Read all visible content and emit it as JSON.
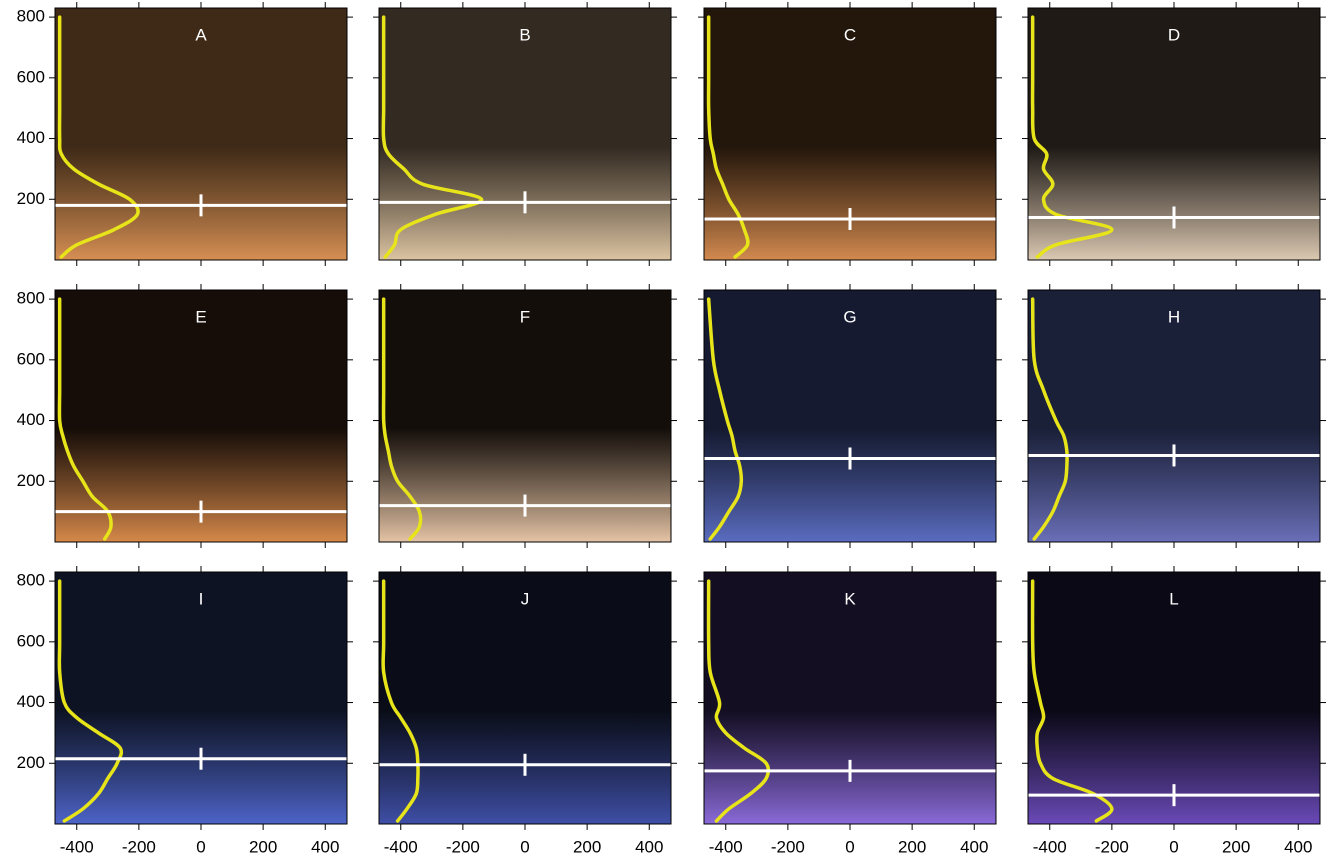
{
  "chart_data": [
    {
      "type": "line",
      "title": "A",
      "background": [
        "#3e2a17",
        "#d68f53"
      ],
      "level": 180,
      "level_color": "#ffffff",
      "xlim": [
        -470,
        470
      ],
      "ylim": [
        0,
        830
      ],
      "xticks": [
        -400,
        -200,
        0,
        200,
        400
      ],
      "yticks": [
        200,
        400,
        600,
        800
      ],
      "series": [
        {
          "color": "#e8e41a",
          "y": [
            10,
            50,
            100,
            150,
            200,
            250,
            300,
            350,
            400,
            500,
            600,
            800
          ],
          "values": [
            -450,
            -400,
            -280,
            -205,
            -230,
            -330,
            -410,
            -450,
            -455,
            -455,
            -455,
            -455
          ]
        }
      ]
    },
    {
      "type": "line",
      "title": "B",
      "background": [
        "#332a22",
        "#dcc4a2"
      ],
      "level": 190,
      "level_color": "#ffffff",
      "xlim": [
        -470,
        470
      ],
      "ylim": [
        0,
        830
      ],
      "xticks": [
        -400,
        -200,
        0,
        200,
        400
      ],
      "yticks": [
        200,
        400,
        600,
        800
      ],
      "series": [
        {
          "color": "#e8e41a",
          "y": [
            10,
            50,
            100,
            150,
            200,
            250,
            300,
            350,
            400,
            500,
            600,
            800
          ],
          "values": [
            -450,
            -420,
            -400,
            -290,
            -140,
            -330,
            -390,
            -440,
            -455,
            -455,
            -455,
            -455
          ]
        }
      ]
    },
    {
      "type": "line",
      "title": "C",
      "background": [
        "#23160b",
        "#d38a4f"
      ],
      "level": 135,
      "level_color": "#ffffff",
      "xlim": [
        -470,
        470
      ],
      "ylim": [
        0,
        830
      ],
      "xticks": [
        -400,
        -200,
        0,
        200,
        400
      ],
      "yticks": [
        200,
        400,
        600,
        800
      ],
      "series": [
        {
          "color": "#e8e41a",
          "y": [
            10,
            50,
            100,
            150,
            200,
            250,
            300,
            350,
            400,
            500,
            600,
            800
          ],
          "values": [
            -370,
            -330,
            -340,
            -360,
            -390,
            -410,
            -430,
            -440,
            -450,
            -455,
            -455,
            -455
          ]
        }
      ]
    },
    {
      "type": "line",
      "title": "D",
      "background": [
        "#1f1a16",
        "#dcc9b2"
      ],
      "level": 140,
      "level_color": "#ffffff",
      "xlim": [
        -470,
        470
      ],
      "ylim": [
        0,
        830
      ],
      "xticks": [
        -400,
        -200,
        0,
        200,
        400
      ],
      "yticks": [
        200,
        400,
        600,
        800
      ],
      "series": [
        {
          "color": "#e8e41a",
          "y": [
            10,
            50,
            100,
            150,
            200,
            250,
            300,
            350,
            400,
            500,
            600,
            800
          ],
          "values": [
            -440,
            -380,
            -200,
            -380,
            -420,
            -390,
            -420,
            -410,
            -450,
            -455,
            -455,
            -455
          ]
        }
      ]
    },
    {
      "type": "line",
      "title": "E",
      "background": [
        "#160d08",
        "#d6894a"
      ],
      "level": 100,
      "level_color": "#ffffff",
      "xlim": [
        -470,
        470
      ],
      "ylim": [
        0,
        830
      ],
      "xticks": [
        -400,
        -200,
        0,
        200,
        400
      ],
      "yticks": [
        200,
        400,
        600,
        800
      ],
      "series": [
        {
          "color": "#e8e41a",
          "y": [
            10,
            50,
            100,
            150,
            200,
            250,
            300,
            350,
            400,
            500,
            600,
            800
          ],
          "values": [
            -310,
            -290,
            -300,
            -350,
            -380,
            -410,
            -430,
            -445,
            -455,
            -455,
            -455,
            -455
          ]
        }
      ]
    },
    {
      "type": "line",
      "title": "F",
      "background": [
        "#140e0a",
        "#e5c4a5"
      ],
      "level": 120,
      "level_color": "#ffffff",
      "xlim": [
        -470,
        470
      ],
      "ylim": [
        0,
        830
      ],
      "xticks": [
        -400,
        -200,
        0,
        200,
        400
      ],
      "yticks": [
        200,
        400,
        600,
        800
      ],
      "series": [
        {
          "color": "#e8e41a",
          "y": [
            10,
            50,
            100,
            150,
            200,
            250,
            300,
            350,
            400,
            500,
            600,
            800
          ],
          "values": [
            -370,
            -340,
            -340,
            -370,
            -410,
            -430,
            -440,
            -450,
            -455,
            -455,
            -455,
            -455
          ]
        }
      ]
    },
    {
      "type": "line",
      "title": "G",
      "background": [
        "#151a30",
        "#5a6cc0"
      ],
      "level": 275,
      "level_color": "#ffffff",
      "xlim": [
        -470,
        470
      ],
      "ylim": [
        0,
        830
      ],
      "xticks": [
        -400,
        -200,
        0,
        200,
        400
      ],
      "yticks": [
        200,
        400,
        600,
        800
      ],
      "series": [
        {
          "color": "#e8e41a",
          "y": [
            10,
            50,
            100,
            150,
            200,
            250,
            300,
            350,
            400,
            500,
            600,
            800
          ],
          "values": [
            -450,
            -420,
            -390,
            -360,
            -350,
            -355,
            -370,
            -380,
            -395,
            -420,
            -440,
            -455
          ]
        }
      ]
    },
    {
      "type": "line",
      "title": "H",
      "background": [
        "#1a2038",
        "#6a6fb8"
      ],
      "level": 285,
      "level_color": "#ffffff",
      "xlim": [
        -470,
        470
      ],
      "ylim": [
        0,
        830
      ],
      "xticks": [
        -400,
        -200,
        0,
        200,
        400
      ],
      "yticks": [
        200,
        400,
        600,
        800
      ],
      "series": [
        {
          "color": "#e8e41a",
          "y": [
            10,
            50,
            100,
            150,
            200,
            250,
            300,
            350,
            400,
            500,
            600,
            800
          ],
          "values": [
            -450,
            -420,
            -390,
            -370,
            -350,
            -345,
            -345,
            -355,
            -380,
            -420,
            -450,
            -455
          ]
        }
      ]
    },
    {
      "type": "line",
      "title": "I",
      "background": [
        "#0e1324",
        "#4d64c8"
      ],
      "level": 215,
      "level_color": "#ffffff",
      "xlim": [
        -470,
        470
      ],
      "ylim": [
        0,
        830
      ],
      "xticks": [
        -400,
        -200,
        0,
        200,
        400
      ],
      "yticks": [
        200,
        400,
        600,
        800
      ],
      "series": [
        {
          "color": "#e8e41a",
          "y": [
            10,
            50,
            100,
            150,
            200,
            250,
            300,
            350,
            400,
            500,
            600,
            800
          ],
          "values": [
            -440,
            -380,
            -330,
            -300,
            -270,
            -260,
            -330,
            -400,
            -440,
            -455,
            -455,
            -455
          ]
        }
      ]
    },
    {
      "type": "line",
      "title": "J",
      "background": [
        "#0a0d18",
        "#3f4fa6"
      ],
      "level": 195,
      "level_color": "#ffffff",
      "xlim": [
        -470,
        470
      ],
      "ylim": [
        0,
        830
      ],
      "xticks": [
        -400,
        -200,
        0,
        200,
        400
      ],
      "yticks": [
        200,
        400,
        600,
        800
      ],
      "series": [
        {
          "color": "#e8e41a",
          "y": [
            10,
            50,
            100,
            150,
            200,
            250,
            300,
            350,
            400,
            500,
            600,
            800
          ],
          "values": [
            -410,
            -380,
            -350,
            -345,
            -345,
            -350,
            -370,
            -400,
            -430,
            -455,
            -455,
            -455
          ]
        }
      ]
    },
    {
      "type": "line",
      "title": "K",
      "background": [
        "#130e22",
        "#8a6ad8"
      ],
      "level": 175,
      "level_color": "#ffffff",
      "xlim": [
        -470,
        470
      ],
      "ylim": [
        0,
        830
      ],
      "xticks": [
        -400,
        -200,
        0,
        200,
        400
      ],
      "yticks": [
        200,
        400,
        600,
        800
      ],
      "series": [
        {
          "color": "#e8e41a",
          "y": [
            10,
            50,
            100,
            150,
            200,
            250,
            300,
            350,
            400,
            500,
            600,
            800
          ],
          "values": [
            -430,
            -390,
            -320,
            -270,
            -270,
            -340,
            -400,
            -430,
            -420,
            -450,
            -455,
            -455
          ]
        }
      ]
    },
    {
      "type": "line",
      "title": "L",
      "background": [
        "#0b0916",
        "#6a4ab8"
      ],
      "level": 95,
      "level_color": "#ffffff",
      "xlim": [
        -470,
        470
      ],
      "ylim": [
        0,
        830
      ],
      "xticks": [
        -400,
        -200,
        0,
        200,
        400
      ],
      "yticks": [
        200,
        400,
        600,
        800
      ],
      "series": [
        {
          "color": "#e8e41a",
          "y": [
            10,
            50,
            100,
            150,
            200,
            250,
            300,
            350,
            400,
            500,
            600,
            800
          ],
          "values": [
            -250,
            -200,
            -260,
            -390,
            -430,
            -440,
            -440,
            -420,
            -430,
            -450,
            -455,
            -455
          ]
        }
      ]
    }
  ]
}
